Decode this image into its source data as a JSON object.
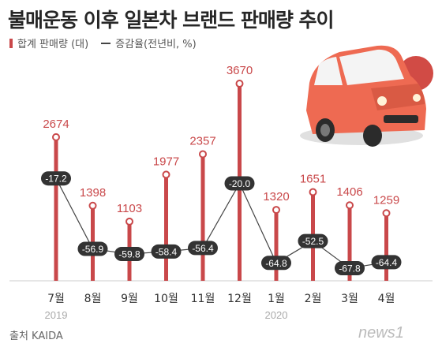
{
  "title": "불매운동 이후 일본차 브랜드 판매량 추이",
  "legend": {
    "bar_label": "합계 판매량 (대)",
    "line_label": "증감율(전년비, %)"
  },
  "source": "출처 KAIDA",
  "logo_text": "news1",
  "colors": {
    "bar": "#c9484a",
    "label": "#c9484a",
    "line": "#444444",
    "pill": "#333333",
    "car": "#ee6a52"
  },
  "chart_data": {
    "type": "bar",
    "categories": [
      "7월",
      "8월",
      "9월",
      "10월",
      "11월",
      "12월",
      "1월",
      "2월",
      "3월",
      "4월"
    ],
    "year_labels": [
      {
        "label": "2019",
        "category_index": 0
      },
      {
        "label": "2020",
        "category_index": 6
      }
    ],
    "series": [
      {
        "name": "합계 판매량 (대)",
        "type": "bar",
        "values": [
          2674,
          1398,
          1103,
          1977,
          2357,
          3670,
          1320,
          1651,
          1406,
          1259
        ]
      },
      {
        "name": "증감율(전년비, %)",
        "type": "line",
        "values": [
          -17.2,
          -56.9,
          -59.8,
          -58.4,
          -56.4,
          -20.0,
          -64.8,
          -52.5,
          -67.8,
          -64.4
        ]
      }
    ],
    "title": "불매운동 이후 일본차 브랜드 판매량 추이",
    "bar_ylim": [
      0,
      3700
    ],
    "line_ylim": [
      -70,
      -10
    ],
    "grid": false,
    "legend_position": "top-left"
  }
}
